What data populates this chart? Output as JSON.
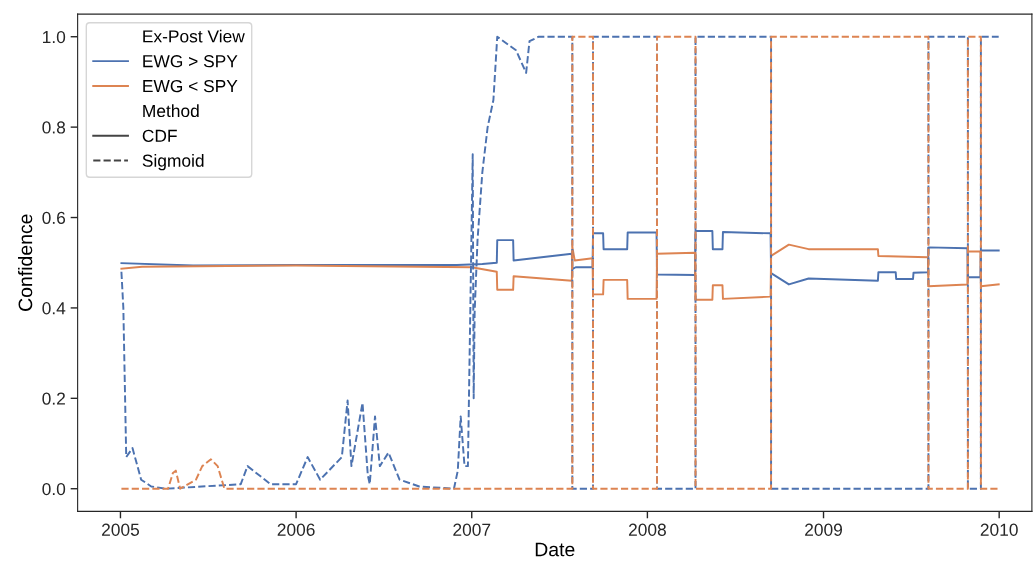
{
  "chart_data": {
    "type": "line",
    "xlabel": "Date",
    "ylabel": "Confidence",
    "legend_title": "Ex-Post View",
    "annotations": [
      "Method",
      "CDF",
      "Sigmoid"
    ],
    "legend": "top left",
    "grid": false,
    "marker": "none",
    "xlim": [
      "2004-10-04",
      "2010-03-10"
    ],
    "xticks": [
      {
        "value": "2005-01-01",
        "label": "2005"
      },
      {
        "value": "2006-01-01",
        "label": "2006"
      },
      {
        "value": "2007-01-01",
        "label": "2007"
      },
      {
        "value": "2008-01-01",
        "label": "2008"
      },
      {
        "value": "2009-01-01",
        "label": "2009"
      },
      {
        "value": "2010-01-01",
        "label": "2010"
      }
    ],
    "ylim": [
      -0.05,
      1.05
    ],
    "yticks": [
      {
        "value": 0,
        "label": "0.0"
      },
      0.2,
      0.4,
      0.6,
      0.8,
      {
        "value": 1,
        "label": "1.0"
      }
    ],
    "series": [
      {
        "name": "EWG > SPY",
        "color": "#4c72b0",
        "line_style": "solid",
        "x": [
          "2005-01-03",
          "2005-06-01",
          "2006-01-01",
          "2006-12-01",
          "2007-01-23",
          "2007-02-22",
          "2007-02-23",
          "2007-03-28",
          "2007-03-29",
          "2007-07-28",
          "2007-07-29",
          "2007-08-05",
          "2007-09-09",
          "2007-09-10",
          "2007-10-01",
          "2007-10-02",
          "2007-11-20",
          "2007-11-21",
          "2008-01-20",
          "2008-01-21",
          "2008-04-09",
          "2008-04-10",
          "2008-05-15",
          "2008-05-16",
          "2008-06-05",
          "2008-06-06",
          "2008-09-13",
          "2008-09-14",
          "2008-10-21",
          "2008-12-01",
          "2009-04-24",
          "2009-04-25",
          "2009-05-31",
          "2009-06-01",
          "2009-07-06",
          "2009-07-07",
          "2009-08-06",
          "2009-08-07",
          "2009-10-27",
          "2009-10-28",
          "2009-11-23",
          "2009-11-24",
          "2009-12-31"
        ],
        "values": [
          0.499,
          0.494,
          0.495,
          0.495,
          0.497,
          0.5,
          0.55,
          0.55,
          0.505,
          0.52,
          0.486,
          0.49,
          0.49,
          0.565,
          0.565,
          0.53,
          0.53,
          0.567,
          0.567,
          0.474,
          0.473,
          0.57,
          0.57,
          0.53,
          0.53,
          0.568,
          0.565,
          0.477,
          0.452,
          0.465,
          0.46,
          0.479,
          0.479,
          0.464,
          0.464,
          0.478,
          0.479,
          0.534,
          0.532,
          0.468,
          0.468,
          0.527,
          0.527
        ]
      },
      {
        "name": "EWG < SPY",
        "color": "#dd8452",
        "line_style": "solid",
        "x": [
          "2005-01-03",
          "2005-02-15",
          "2006-01-01",
          "2006-06-01",
          "2007-01-01",
          "2007-02-22",
          "2007-02-23",
          "2007-03-28",
          "2007-03-29",
          "2007-07-28",
          "2007-07-29",
          "2007-08-03",
          "2007-09-09",
          "2007-09-10",
          "2007-10-01",
          "2007-10-02",
          "2007-11-20",
          "2007-11-21",
          "2008-01-20",
          "2008-01-21",
          "2008-04-09",
          "2008-04-10",
          "2008-05-15",
          "2008-05-16",
          "2008-06-05",
          "2008-06-06",
          "2008-09-13",
          "2008-09-14",
          "2008-10-21",
          "2008-12-01",
          "2009-04-24",
          "2009-04-25",
          "2009-08-06",
          "2009-08-07",
          "2009-10-27",
          "2009-10-28",
          "2009-11-23",
          "2009-11-24",
          "2009-12-31"
        ],
        "values": [
          0.487,
          0.491,
          0.494,
          0.492,
          0.49,
          0.48,
          0.44,
          0.44,
          0.47,
          0.46,
          0.535,
          0.505,
          0.51,
          0.43,
          0.43,
          0.462,
          0.462,
          0.42,
          0.42,
          0.52,
          0.522,
          0.418,
          0.418,
          0.45,
          0.45,
          0.42,
          0.425,
          0.515,
          0.54,
          0.53,
          0.53,
          0.515,
          0.512,
          0.448,
          0.452,
          0.525,
          0.525,
          0.448,
          0.452
        ]
      },
      {
        "color": "#4c72b0",
        "line_style": "dashed",
        "x": [
          "2005-01-03",
          "2005-01-07",
          "2005-01-13",
          "2005-01-26",
          "2005-02-13",
          "2005-03-06",
          "2005-04-05",
          "2005-09-08",
          "2005-09-22",
          "2005-11-09",
          "2006-01-01",
          "2006-01-25",
          "2006-02-20",
          "2006-04-06",
          "2006-04-18",
          "2006-04-26",
          "2006-05-19",
          "2006-05-30",
          "2006-06-03",
          "2006-06-14",
          "2006-06-24",
          "2006-07-12",
          "2006-08-04",
          "2006-09-14",
          "2006-11-25",
          "2006-12-03",
          "2006-12-09",
          "2006-12-17",
          "2006-12-24",
          "2007-01-03",
          "2007-01-05",
          "2007-01-07",
          "2007-01-13",
          "2007-01-23",
          "2007-02-03",
          "2007-02-15",
          "2007-02-23",
          "2007-04-03",
          "2007-04-24",
          "2007-05-01",
          "2007-05-20",
          "2007-07-29",
          "2007-07-29",
          "2007-09-10",
          "2007-09-10",
          "2008-01-21",
          "2008-01-21",
          "2008-04-10",
          "2008-04-10",
          "2008-09-14",
          "2008-09-14",
          "2009-08-07",
          "2009-08-07",
          "2009-10-28",
          "2009-10-28",
          "2009-11-24",
          "2009-11-24",
          "2009-12-31"
        ],
        "values": [
          0.48,
          0.4,
          0.07,
          0.09,
          0.02,
          0.005,
          0.0,
          0.01,
          0.05,
          0.01,
          0.01,
          0.07,
          0.02,
          0.07,
          0.195,
          0.05,
          0.19,
          0.03,
          0.01,
          0.16,
          0.05,
          0.08,
          0.02,
          0.005,
          0.0,
          0.04,
          0.16,
          0.05,
          0.05,
          0.74,
          0.2,
          0.39,
          0.55,
          0.7,
          0.8,
          0.86,
          1.0,
          0.97,
          0.92,
          0.99,
          1.0,
          1.0,
          0.0,
          0.0,
          1.0,
          1.0,
          0.0,
          0.0,
          1.0,
          1.0,
          0.0,
          0.0,
          1.0,
          1.0,
          0.0,
          0.0,
          1.0,
          1.0
        ]
      },
      {
        "color": "#dd8452",
        "line_style": "dashed",
        "x": [
          "2005-01-03",
          "2005-04-10",
          "2005-04-20",
          "2005-04-26",
          "2005-05-05",
          "2005-06-07",
          "2005-06-20",
          "2005-07-08",
          "2005-07-22",
          "2005-08-05",
          "2007-07-29",
          "2007-07-29",
          "2007-09-10",
          "2007-09-10",
          "2008-01-21",
          "2008-01-21",
          "2008-04-10",
          "2008-04-10",
          "2008-09-14",
          "2008-09-14",
          "2009-08-07",
          "2009-08-07",
          "2009-10-28",
          "2009-10-28",
          "2009-11-24",
          "2009-11-24",
          "2009-12-31"
        ],
        "values": [
          0.0,
          0.0,
          0.035,
          0.04,
          0.0,
          0.02,
          0.05,
          0.065,
          0.05,
          0.0,
          0.0,
          1.0,
          1.0,
          0.0,
          0.0,
          1.0,
          1.0,
          0.0,
          0.0,
          1.0,
          1.0,
          0.0,
          0.0,
          1.0,
          1.0,
          0.0,
          0.0
        ]
      }
    ]
  }
}
